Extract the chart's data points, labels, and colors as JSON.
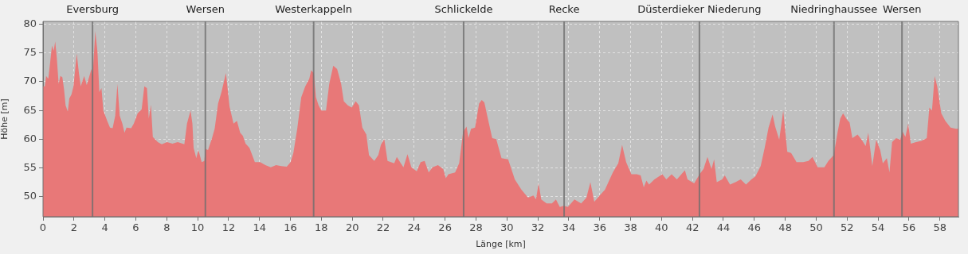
{
  "chart_data": {
    "type": "area",
    "xlabel": "Länge [km]",
    "ylabel": "Höhe [m]",
    "x": [
      0,
      0.12,
      0.2,
      0.34,
      0.46,
      0.58,
      0.69,
      0.79,
      0.89,
      1.01,
      1.12,
      1.25,
      1.36,
      1.46,
      1.6,
      1.7,
      1.84,
      1.97,
      2.18,
      2.32,
      2.44,
      2.66,
      2.83,
      3.13,
      3.21,
      3.38,
      3.52,
      3.64,
      3.78,
      3.9,
      4.15,
      4.33,
      4.5,
      4.67,
      4.81,
      4.96,
      5.13,
      5.27,
      5.4,
      5.7,
      5.87,
      6.12,
      6.38,
      6.55,
      6.72,
      6.84,
      6.98,
      7.1,
      7.42,
      7.68,
      8.02,
      8.37,
      8.71,
      9.14,
      9.31,
      9.54,
      9.66,
      9.74,
      9.91,
      10.05,
      10.26,
      10.43,
      10.5,
      10.67,
      10.93,
      11.1,
      11.32,
      11.54,
      11.83,
      12.06,
      12.32,
      12.54,
      12.75,
      12.92,
      13.1,
      13.35,
      13.7,
      14.04,
      14.38,
      14.73,
      15.07,
      15.41,
      15.76,
      16.01,
      16.19,
      16.44,
      16.7,
      16.96,
      17.22,
      17.34,
      17.51,
      17.65,
      17.82,
      18,
      18.17,
      18.3,
      18.51,
      18.77,
      19.02,
      19.28,
      19.45,
      19.71,
      19.97,
      20.22,
      20.43,
      20.65,
      20.91,
      21.08,
      21.42,
      21.68,
      21.85,
      22.07,
      22.28,
      22.71,
      22.88,
      23.14,
      23.31,
      23.57,
      23.82,
      24.17,
      24.42,
      24.68,
      24.94,
      25.19,
      25.54,
      25.88,
      26.05,
      26.22,
      26.65,
      26.91,
      27.17,
      27.39,
      27.51,
      27.68,
      27.94,
      28.2,
      28.37,
      28.54,
      28.8,
      29.05,
      29.31,
      29.65,
      30.08,
      30.51,
      30.94,
      31.37,
      31.71,
      31.88,
      32.05,
      32.22,
      32.57,
      32.91,
      33.17,
      33.42,
      33.68,
      33.94,
      34.37,
      34.8,
      35.14,
      35.4,
      35.65,
      36,
      36.34,
      36.85,
      37.2,
      37.45,
      37.71,
      38.05,
      38.4,
      38.65,
      38.85,
      39.02,
      39.19,
      39.54,
      40.05,
      40.31,
      40.65,
      40.99,
      41.51,
      41.68,
      42.11,
      42.46,
      42.71,
      42.97,
      43.23,
      43.4,
      43.57,
      43.92,
      44.09,
      44.43,
      44.78,
      45.12,
      45.46,
      45.81,
      46.07,
      46.41,
      46.67,
      46.92,
      47.18,
      47.35,
      47.61,
      47.87,
      48.13,
      48.38,
      48.73,
      49.16,
      49.5,
      49.76,
      50.1,
      50.53,
      50.79,
      51.13,
      51.39,
      51.56,
      51.74,
      51.99,
      52.16,
      52.34,
      52.68,
      52.94,
      53.2,
      53.37,
      53.63,
      53.88,
      54.14,
      54.31,
      54.57,
      54.74,
      54.91,
      55.17,
      55.43,
      55.6,
      55.77,
      55.95,
      56.12,
      56.46,
      56.8,
      57.15,
      57.32,
      57.49,
      57.66,
      57.83,
      58.09,
      58.35,
      58.69,
      59.04,
      59.2
    ],
    "series": [
      {
        "color": "#e87878",
        "values": [
          69.2,
          69.2,
          71,
          70.5,
          73.3,
          76.3,
          75.4,
          77,
          74.2,
          69.6,
          71,
          70.8,
          68.7,
          65.9,
          64.8,
          67.1,
          67.8,
          69.2,
          74.9,
          71.5,
          69.2,
          71,
          69.4,
          72.2,
          71,
          78.8,
          75.2,
          68.2,
          68.9,
          65,
          63.2,
          62,
          61.9,
          64.1,
          69.6,
          64.1,
          62.7,
          61.1,
          62,
          61.9,
          62.7,
          64.5,
          65.2,
          69.2,
          68.9,
          63.6,
          66,
          60.4,
          59.5,
          59.1,
          59.5,
          59.2,
          59.5,
          59.1,
          62.7,
          65,
          62.7,
          58.5,
          56.7,
          58.1,
          56,
          56.2,
          58.3,
          58.1,
          60.2,
          61.8,
          66.2,
          68.2,
          71.5,
          65.7,
          62.7,
          63.2,
          61.1,
          60.6,
          59.2,
          58.5,
          56,
          56,
          55.5,
          55.1,
          55.5,
          55.3,
          55.2,
          56,
          57.6,
          61.8,
          67.3,
          69.2,
          70.5,
          72,
          71.5,
          67.3,
          65.9,
          65,
          65,
          65,
          69.6,
          72.8,
          72.2,
          69.6,
          66.6,
          65.9,
          65.5,
          66.6,
          65.9,
          62,
          60.8,
          57.2,
          56.2,
          57.2,
          59,
          60,
          56.2,
          55.8,
          56.9,
          55.8,
          55.1,
          57.4,
          55.1,
          54.4,
          56,
          56.2,
          54.2,
          55.1,
          55.5,
          54.8,
          53.2,
          53.9,
          54.2,
          55.8,
          61.3,
          62.2,
          60.2,
          61.8,
          62,
          66.2,
          66.8,
          66.4,
          63.2,
          60.2,
          60,
          56.7,
          56.5,
          53,
          51.2,
          49.8,
          50.2,
          49.5,
          52.3,
          49.5,
          48.8,
          48.8,
          49.5,
          48.2,
          48.4,
          48.2,
          49.5,
          48.8,
          49.8,
          52.5,
          49.1,
          50.2,
          51.2,
          54.2,
          55.8,
          59,
          56,
          53.9,
          53.9,
          53.7,
          51.6,
          52.8,
          52.1,
          53,
          53.9,
          53,
          53.9,
          53,
          54.6,
          53,
          52.3,
          53.9,
          54.8,
          56.9,
          54.8,
          56.5,
          52.5,
          53,
          53.7,
          52.1,
          52.5,
          53,
          52.1,
          53,
          53.5,
          55.3,
          58.5,
          62,
          64.3,
          62.2,
          59.9,
          65,
          57.8,
          57.6,
          56,
          56,
          56.2,
          56.9,
          55.1,
          55.1,
          56.2,
          57.2,
          61.3,
          63.6,
          64.5,
          63.4,
          62.9,
          60.2,
          60.8,
          59.9,
          58.8,
          61.1,
          55.3,
          59.9,
          58.1,
          55.8,
          56.7,
          54.2,
          59.5,
          60.2,
          59.9,
          61.3,
          60.4,
          62.7,
          59.2,
          59.5,
          59.7,
          60.2,
          65.5,
          65,
          71,
          69.2,
          64.5,
          63.2,
          62,
          61.8,
          61.8
        ]
      }
    ],
    "xlim": [
      0,
      59.2
    ],
    "ylim": [
      46.5,
      80.5
    ],
    "xticks": [
      0,
      2,
      4,
      6,
      8,
      10,
      12,
      14,
      16,
      18,
      20,
      22,
      24,
      26,
      28,
      30,
      32,
      34,
      36,
      38,
      40,
      42,
      44,
      46,
      48,
      50,
      52,
      54,
      56,
      58
    ],
    "yticks": [
      50,
      55,
      60,
      65,
      70,
      75,
      80
    ],
    "grid": true,
    "marker": "none",
    "ref_lines": [
      {
        "axis": "x",
        "value": 3.2,
        "label": "Eversburg",
        "color": "#6e6e6e"
      },
      {
        "axis": "x",
        "value": 10.5,
        "label": "Wersen",
        "color": "#6e6e6e"
      },
      {
        "axis": "x",
        "value": 17.5,
        "label": "Westerkappeln",
        "color": "#6e6e6e"
      },
      {
        "axis": "x",
        "value": 27.2,
        "label": "Schlickelde",
        "color": "#6e6e6e"
      },
      {
        "axis": "x",
        "value": 33.7,
        "label": "Recke",
        "color": "#6e6e6e"
      },
      {
        "axis": "x",
        "value": 42.45,
        "label": "Düsterdieker Niederung",
        "color": "#6e6e6e"
      },
      {
        "axis": "x",
        "value": 51.15,
        "label": "Niedringhaussee",
        "color": "#6e6e6e"
      },
      {
        "axis": "x",
        "value": 55.55,
        "label": "Wersen",
        "color": "#6e6e6e"
      }
    ]
  }
}
